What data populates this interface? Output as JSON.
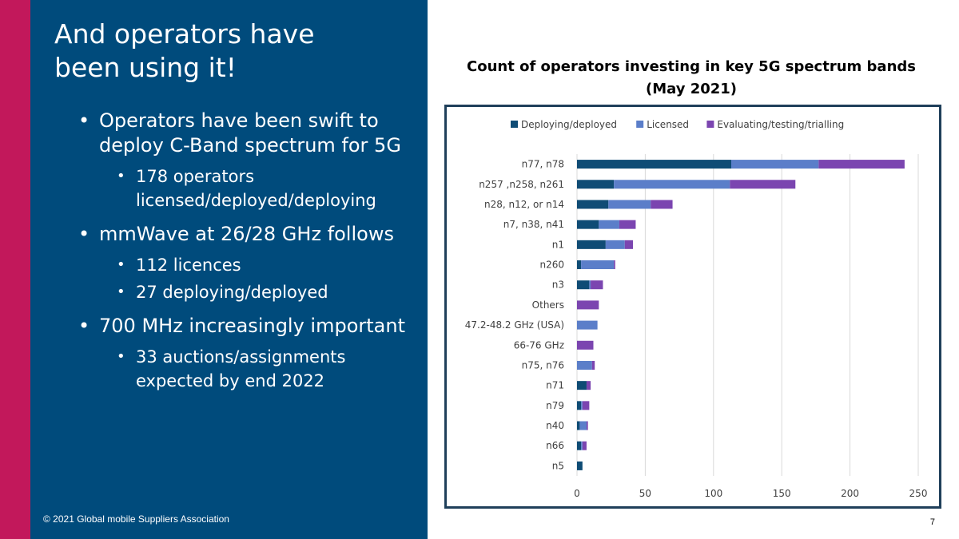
{
  "slide": {
    "title_line1": "And operators have",
    "title_line2": "been using it!",
    "bullets": [
      {
        "text": "Operators have been swift to deploy C-Band spectrum for 5G",
        "sub": [
          "178 operators licensed/deployed/deploying"
        ]
      },
      {
        "text": "mmWave at 26/28 GHz follows",
        "sub": [
          "112 licences",
          "27 deploying/deployed"
        ]
      },
      {
        "text": "700 MHz increasingly important",
        "sub": [
          "33 auctions/assignments expected by end 2022"
        ]
      }
    ],
    "footer": "© 2021 Global mobile Suppliers Association",
    "page_number": "7"
  },
  "colors": {
    "accent": "#c2185b",
    "panel": "#004b7c",
    "deploying": "#0f4c75",
    "licensed": "#5b7ec9",
    "evaluating": "#7b45b0"
  },
  "chart_data": {
    "type": "bar",
    "orientation": "horizontal",
    "stacked": true,
    "title_line1": "Count of operators investing in key 5G spectrum bands",
    "title_line2": "(May 2021)",
    "categories": [
      "n77, n78",
      "n257 ,n258, n261",
      "n28, n12, or n14",
      "n7, n38, n41",
      "n1",
      "n260",
      "n3",
      "Others",
      "47.2-48.2 GHz (USA)",
      "66-76 GHz",
      "n75, n76",
      "n71",
      "n79",
      "n40",
      "n66",
      "n5"
    ],
    "series": [
      {
        "name": "Deploying/deployed",
        "values": [
          113,
          27,
          23,
          16,
          21,
          3,
          9,
          0,
          0,
          0,
          0,
          7,
          3,
          2,
          3,
          4
        ]
      },
      {
        "name": "Licensed",
        "values": [
          64,
          85,
          31,
          15,
          14,
          24,
          1,
          0,
          15,
          0,
          11,
          0,
          1,
          5,
          1,
          0
        ]
      },
      {
        "name": "Evaluating/testing/trialling",
        "values": [
          63,
          48,
          16,
          12,
          6,
          1,
          9,
          16,
          0,
          12,
          2,
          3,
          5,
          1,
          3,
          0
        ]
      }
    ],
    "xlim": [
      0,
      250
    ],
    "xticks": [
      "0",
      "50",
      "100",
      "150",
      "200",
      "250"
    ],
    "legend": "top",
    "grid": "vertical"
  }
}
